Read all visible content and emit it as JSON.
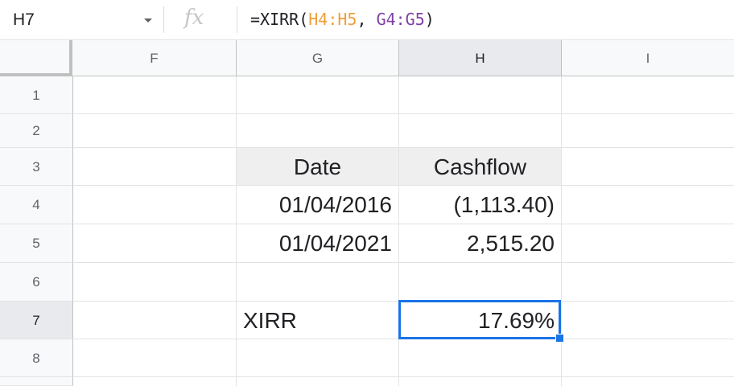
{
  "formula_bar": {
    "name_box": "H7",
    "fx_label": "fx",
    "formula_prefix": "=XIRR(",
    "formula_arg1": "H4:H5",
    "formula_sep": ", ",
    "formula_arg2": "G4:G5",
    "formula_suffix": ")",
    "arg1_color": "#f29d38",
    "arg2_color": "#7e3fa5"
  },
  "columns": [
    "F",
    "G",
    "H",
    "I"
  ],
  "rows": [
    "1",
    "2",
    "3",
    "4",
    "5",
    "6",
    "7",
    "8"
  ],
  "cells": {
    "G3": "Date",
    "H3": "Cashflow",
    "G4": "01/04/2016",
    "H4": "(1,113.40)",
    "G5": "01/04/2021",
    "H5": "2,515.20",
    "G7": "XIRR",
    "H7": "17.69%"
  },
  "selected_cell": "H7",
  "colors": {
    "selection": "#1a73e8",
    "header_fill": "#efefef"
  }
}
